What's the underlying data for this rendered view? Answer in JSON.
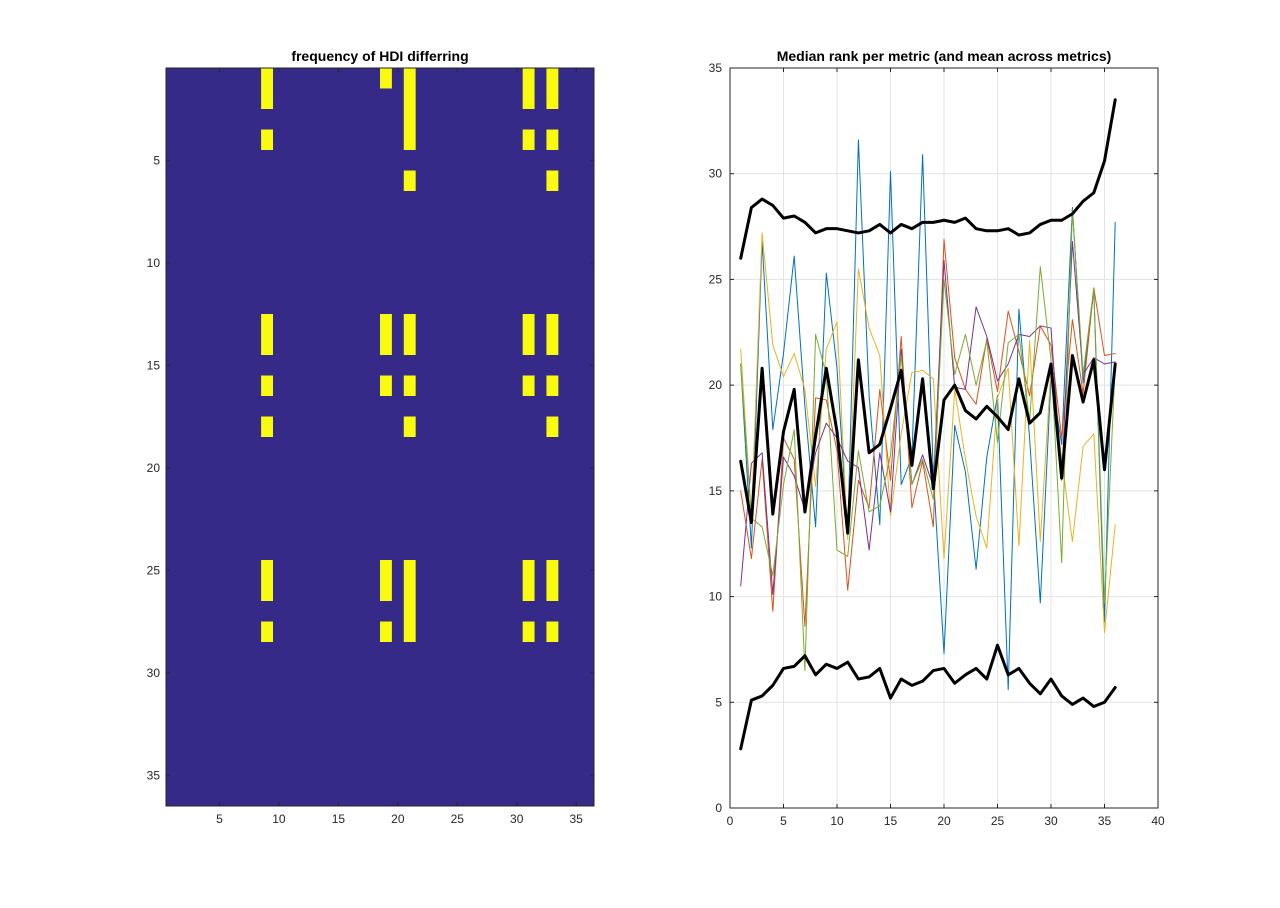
{
  "chart_data": [
    {
      "type": "heatmap",
      "title": "frequency of HDI differring",
      "xlim": [
        0.5,
        36.5
      ],
      "ylim": [
        0.5,
        36.5
      ],
      "y_reversed": true,
      "xticks": [
        "5",
        "10",
        "15",
        "20",
        "25",
        "30",
        "35"
      ],
      "yticks": [
        "5",
        "10",
        "15",
        "20",
        "25",
        "30",
        "35"
      ],
      "colors": {
        "background": "#352a87",
        "highlight": "#f9fb0e"
      },
      "highlighted_cells": [
        [
          9,
          1
        ],
        [
          9,
          2
        ],
        [
          9,
          4
        ],
        [
          9,
          13
        ],
        [
          9,
          14
        ],
        [
          9,
          16
        ],
        [
          9,
          18
        ],
        [
          9,
          25
        ],
        [
          9,
          26
        ],
        [
          9,
          28
        ],
        [
          19,
          1
        ],
        [
          19,
          13
        ],
        [
          19,
          14
        ],
        [
          19,
          16
        ],
        [
          19,
          25
        ],
        [
          19,
          26
        ],
        [
          19,
          28
        ],
        [
          21,
          1
        ],
        [
          21,
          2
        ],
        [
          21,
          3
        ],
        [
          21,
          4
        ],
        [
          21,
          6
        ],
        [
          21,
          13
        ],
        [
          21,
          14
        ],
        [
          21,
          16
        ],
        [
          21,
          18
        ],
        [
          21,
          25
        ],
        [
          21,
          26
        ],
        [
          21,
          27
        ],
        [
          21,
          28
        ],
        [
          31,
          1
        ],
        [
          31,
          2
        ],
        [
          31,
          4
        ],
        [
          31,
          13
        ],
        [
          31,
          14
        ],
        [
          31,
          16
        ],
        [
          31,
          25
        ],
        [
          31,
          26
        ],
        [
          31,
          28
        ],
        [
          33,
          1
        ],
        [
          33,
          2
        ],
        [
          33,
          4
        ],
        [
          33,
          6
        ],
        [
          33,
          13
        ],
        [
          33,
          14
        ],
        [
          33,
          16
        ],
        [
          33,
          18
        ],
        [
          33,
          25
        ],
        [
          33,
          26
        ],
        [
          33,
          28
        ]
      ]
    },
    {
      "type": "line",
      "title": "Median rank per metric (and mean across metrics)",
      "xlim": [
        0,
        40
      ],
      "ylim": [
        0,
        35
      ],
      "xticks": [
        "0",
        "5",
        "10",
        "15",
        "20",
        "25",
        "30",
        "35",
        "40"
      ],
      "yticks": [
        "0",
        "5",
        "10",
        "15",
        "20",
        "25",
        "30",
        "35"
      ],
      "grid": true,
      "x": [
        1,
        2,
        3,
        4,
        5,
        6,
        7,
        8,
        9,
        10,
        11,
        12,
        13,
        14,
        15,
        16,
        17,
        18,
        19,
        20,
        21,
        22,
        23,
        24,
        25,
        26,
        27,
        28,
        29,
        30,
        31,
        32,
        33,
        34,
        35,
        36
      ],
      "series": [
        {
          "color": "#0072bd",
          "width": 1,
          "values": [
            21,
            12.3,
            26.8,
            17.9,
            21.5,
            26.1,
            19,
            13.3,
            25.3,
            20.8,
            12.9,
            31.6,
            19.5,
            13.4,
            30.1,
            15.3,
            16.6,
            30.9,
            15.8,
            7.3,
            18.1,
            15.9,
            11.3,
            16.6,
            19.5,
            5.6,
            23.6,
            17.5,
            9.7,
            20.4,
            17.2,
            28.4,
            20.1,
            24.5,
            8.8,
            27.7
          ]
        },
        {
          "color": "#d95319",
          "width": 1,
          "values": [
            15,
            11.8,
            16.5,
            9.3,
            17.5,
            16.5,
            8.6,
            19.4,
            19.3,
            16.9,
            10.3,
            15.5,
            14.2,
            19.8,
            15.5,
            22.3,
            14.2,
            16.4,
            13.3,
            26.9,
            21.3,
            19.8,
            19.1,
            22.2,
            19.7,
            23.5,
            21.6,
            19.5,
            22.8,
            21.9,
            17.5,
            23.1,
            19.6,
            24.6,
            21.4,
            21.5
          ]
        },
        {
          "color": "#edb120",
          "width": 1,
          "values": [
            21.7,
            13.8,
            27.2,
            21.9,
            20.4,
            21.5,
            19.8,
            15.2,
            21.7,
            23,
            12.7,
            25.5,
            22.7,
            21.4,
            13.8,
            17.7,
            20.6,
            20.7,
            20.3,
            11.8,
            19.8,
            16.5,
            13.8,
            12.3,
            19.4,
            20.8,
            12.4,
            22.1,
            12.6,
            20.8,
            16.5,
            12.6,
            17.1,
            17.7,
            8.3,
            13.4
          ]
        },
        {
          "color": "#7e2f8e",
          "width": 1,
          "values": [
            10.5,
            16.3,
            16.8,
            10.1,
            16.6,
            15.7,
            14.1,
            16.8,
            18.2,
            17.5,
            16.4,
            16.1,
            12.2,
            16.8,
            14,
            21.7,
            15.3,
            16.7,
            15.2,
            25.9,
            19.9,
            19.8,
            23.7,
            22.3,
            20.2,
            21,
            22.4,
            22.3,
            22.8,
            22.7,
            15.5,
            26.8,
            20.5,
            21.3,
            21,
            21.1
          ]
        },
        {
          "color": "#77ac30",
          "width": 1,
          "values": [
            21,
            13.7,
            13.3,
            11,
            15.3,
            17.9,
            6.5,
            22.4,
            20.5,
            12.2,
            11.9,
            16.9,
            14,
            14.3,
            16.7,
            21.4,
            15.3,
            16.5,
            14.6,
            25,
            20.5,
            22.4,
            20,
            22.1,
            17.3,
            22,
            22.4,
            18.3,
            25.6,
            21.2,
            11.6,
            28.3,
            20.5,
            24.6,
            9.7,
            21
          ]
        },
        {
          "color": "#000000",
          "width": 3,
          "values": [
            26,
            28.4,
            28.8,
            28.5,
            27.9,
            28,
            27.7,
            27.2,
            27.4,
            27.4,
            27.3,
            27.2,
            27.3,
            27.6,
            27.2,
            27.6,
            27.4,
            27.7,
            27.7,
            27.8,
            27.7,
            27.9,
            27.4,
            27.3,
            27.3,
            27.4,
            27.1,
            27.2,
            27.6,
            27.8,
            27.8,
            28.1,
            28.7,
            29.1,
            30.6,
            33.5
          ]
        },
        {
          "color": "#000000",
          "width": 3,
          "values": [
            16.4,
            13.5,
            20.8,
            13.9,
            17.8,
            19.8,
            14,
            17.6,
            20.8,
            17.8,
            13,
            21.2,
            16.8,
            17.2,
            18.9,
            20.7,
            16.2,
            20.3,
            15.1,
            19.3,
            20,
            18.8,
            18.4,
            19,
            18.5,
            17.9,
            20.3,
            18.2,
            18.7,
            21,
            15.6,
            21.4,
            19.2,
            21.2,
            16,
            21
          ]
        },
        {
          "color": "#000000",
          "width": 3,
          "values": [
            2.8,
            5.1,
            5.3,
            5.8,
            6.6,
            6.7,
            7.2,
            6.3,
            6.8,
            6.6,
            6.9,
            6.1,
            6.2,
            6.6,
            5.2,
            6.1,
            5.8,
            6,
            6.5,
            6.6,
            5.9,
            6.3,
            6.6,
            6.1,
            7.7,
            6.3,
            6.6,
            5.9,
            5.4,
            6.1,
            5.3,
            4.9,
            5.2,
            4.8,
            5,
            5.7
          ]
        }
      ]
    }
  ]
}
